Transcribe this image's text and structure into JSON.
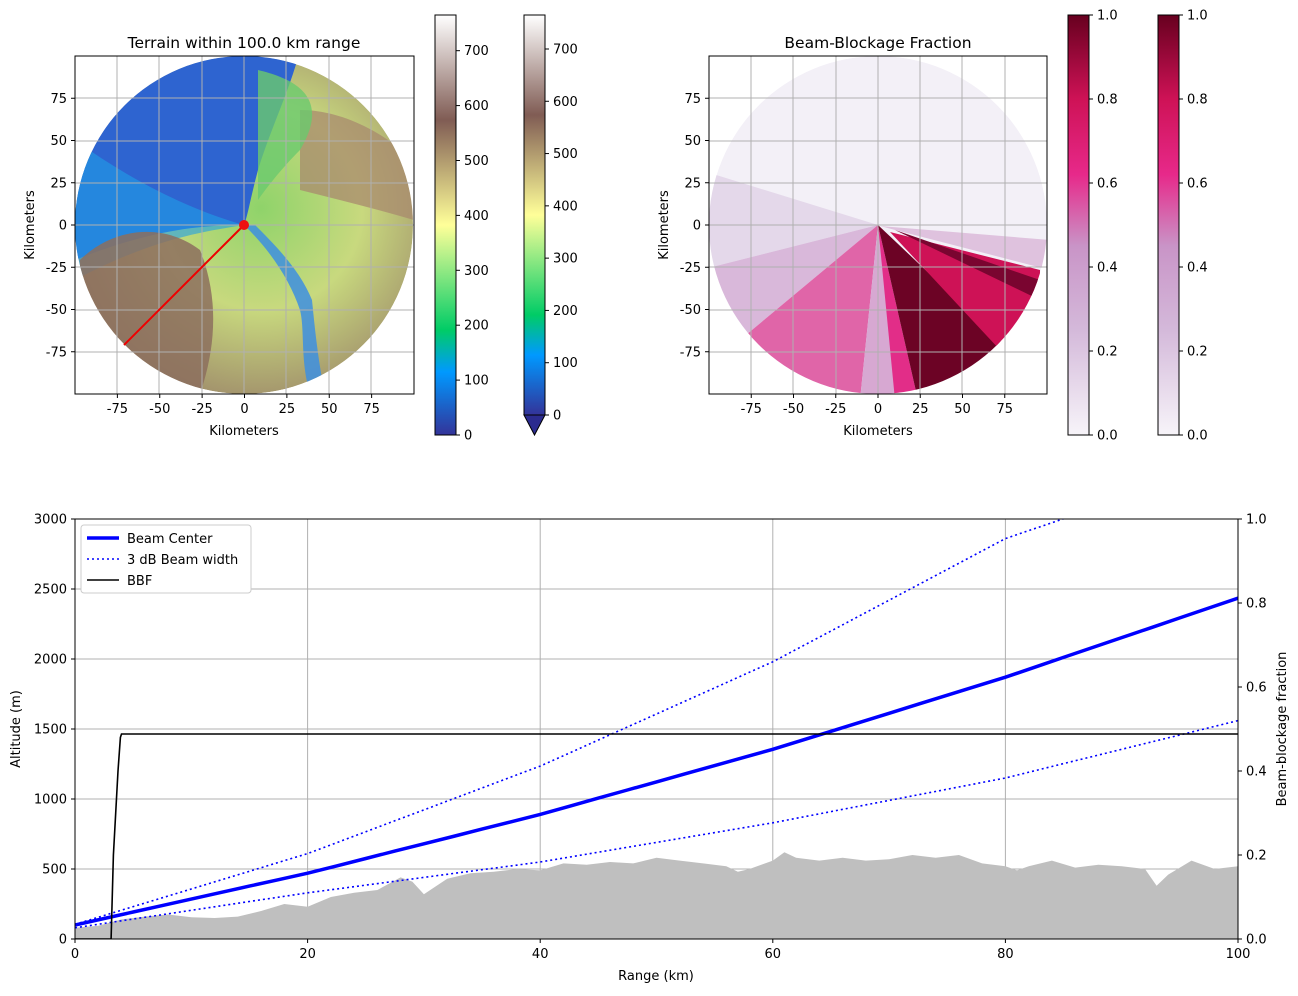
{
  "chart_data": [
    {
      "type": "heatmap",
      "name": "terrain-map",
      "title": "Terrain within 100.0 km range",
      "xlabel": "Kilometers",
      "ylabel": "Kilometers",
      "xticks": [
        -75,
        -50,
        -25,
        0,
        25,
        50,
        75
      ],
      "yticks": [
        75,
        50,
        25,
        0,
        -25,
        -50,
        -75
      ],
      "xlim": [
        -100,
        100
      ],
      "ylim": [
        -100,
        100
      ],
      "range_km": 100.0,
      "radar_site": [
        0,
        0
      ],
      "profile_line": {
        "from": [
          0,
          0
        ],
        "to": [
          -71,
          -71
        ]
      },
      "grid": true,
      "colorbars": [
        {
          "name": "colorbar-terrain-1",
          "colormap": "terrain",
          "ticks": [
            0,
            100,
            200,
            300,
            400,
            500,
            600,
            700
          ],
          "range": [
            0,
            765
          ],
          "extend": "none"
        },
        {
          "name": "colorbar-terrain-2",
          "colormap": "terrain",
          "ticks": [
            0,
            100,
            200,
            300,
            400,
            500,
            600,
            700
          ],
          "range": [
            0,
            765
          ],
          "extend": "min"
        }
      ]
    },
    {
      "type": "heatmap",
      "name": "bbf-map",
      "title": "Beam-Blockage Fraction",
      "xlabel": "Kilometers",
      "ylabel": "Kilometers",
      "xticks": [
        -75,
        -50,
        -25,
        0,
        25,
        50,
        75
      ],
      "yticks": [
        75,
        50,
        25,
        0,
        -25,
        -50,
        -75
      ],
      "xlim": [
        -100,
        100
      ],
      "ylim": [
        -100,
        100
      ],
      "grid": true,
      "colorbars": [
        {
          "name": "colorbar-bbf-1",
          "colormap": "PuRd",
          "ticks": [
            "0.0",
            "0.2",
            "0.4",
            "0.6",
            "0.8",
            "1.0"
          ],
          "range": [
            0,
            1
          ]
        },
        {
          "name": "colorbar-bbf-2",
          "colormap": "PuRd",
          "ticks": [
            "0.0",
            "0.2",
            "0.4",
            "0.6",
            "0.8",
            "1.0"
          ],
          "range": [
            0,
            1
          ]
        }
      ]
    },
    {
      "type": "line",
      "name": "beam-profile",
      "xlabel": "Range (km)",
      "ylabel": "Altitude (m)",
      "y2label": "Beam-blockage fraction",
      "xlim": [
        0,
        100
      ],
      "ylim": [
        0,
        3000
      ],
      "y2lim": [
        0,
        1
      ],
      "xticks": [
        0,
        20,
        40,
        60,
        80,
        100
      ],
      "yticks": [
        0,
        500,
        1000,
        1500,
        2000,
        2500,
        3000
      ],
      "y2ticks": [
        "0.0",
        "0.2",
        "0.4",
        "0.6",
        "0.8",
        "1.0"
      ],
      "grid": true,
      "legend_position": "top-left",
      "series": [
        {
          "name": "Beam Center",
          "color": "#0000ff",
          "style": "solid",
          "x": [
            0,
            20,
            40,
            60,
            80,
            100
          ],
          "y": [
            100,
            470,
            890,
            1355,
            1870,
            2435
          ]
        },
        {
          "name": "3 dB Beam width",
          "color": "#0000ff",
          "style": "dotted",
          "x": [
            0,
            20,
            40,
            60,
            80,
            100
          ],
          "y": [
            105,
            610,
            1235,
            1980,
            2860,
            3000
          ],
          "y_lower": [
            80,
            330,
            550,
            830,
            1150,
            1560
          ]
        },
        {
          "name": "BBF",
          "color": "#000000",
          "style": "solid",
          "axis": "right",
          "x": [
            0,
            3.1,
            3.3,
            3.5,
            3.7,
            3.9,
            4.0,
            100
          ],
          "y": [
            0.0,
            0.0,
            0.2,
            0.3,
            0.4,
            0.48,
            0.488,
            0.488
          ]
        }
      ],
      "terrain_profile": {
        "color": "#bfbfbf",
        "x": [
          0,
          2,
          4,
          6,
          8,
          10,
          12,
          14,
          16,
          18,
          20,
          22,
          24,
          26,
          28,
          29,
          30,
          32,
          34,
          36,
          38,
          40,
          42,
          44,
          46,
          48,
          50,
          52,
          54,
          56,
          57,
          58,
          60,
          61,
          62,
          64,
          66,
          68,
          70,
          72,
          74,
          76,
          78,
          80,
          81,
          82,
          84,
          86,
          88,
          90,
          92,
          93,
          94,
          96,
          98,
          100
        ],
        "y": [
          80,
          95,
          140,
          160,
          175,
          155,
          150,
          160,
          200,
          250,
          230,
          300,
          330,
          350,
          440,
          410,
          320,
          430,
          470,
          480,
          500,
          490,
          540,
          530,
          550,
          540,
          580,
          560,
          540,
          520,
          480,
          500,
          560,
          620,
          580,
          560,
          580,
          560,
          570,
          600,
          580,
          600,
          540,
          520,
          490,
          520,
          560,
          510,
          530,
          520,
          500,
          380,
          460,
          560,
          500,
          520
        ]
      }
    }
  ]
}
